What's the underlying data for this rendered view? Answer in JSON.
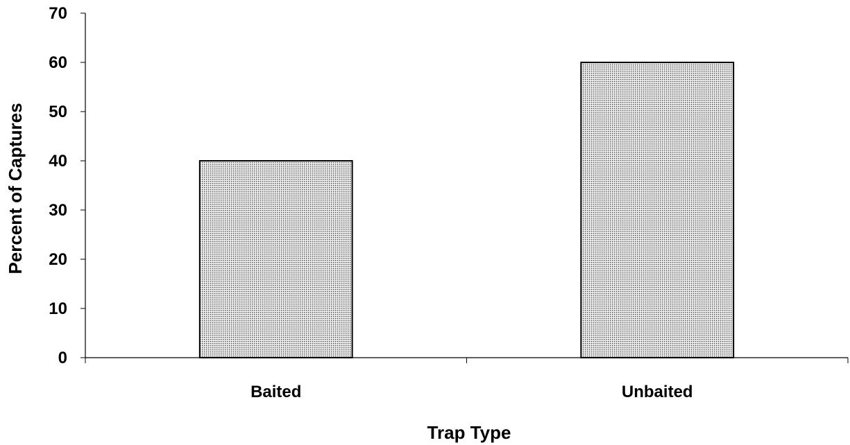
{
  "chart_data": {
    "type": "bar",
    "categories": [
      "Baited",
      "Unbaited"
    ],
    "values": [
      40,
      60
    ],
    "title": "",
    "xlabel": "Trap Type",
    "ylabel": "Percent of Captures",
    "ylim": [
      0,
      70
    ],
    "yticks": [
      0,
      10,
      20,
      30,
      40,
      50,
      60,
      70
    ],
    "ytick_labels": [
      "0",
      "10",
      "20",
      "30",
      "40",
      "50",
      "60",
      "70"
    ],
    "grid": false,
    "legend": "none",
    "bar_fill": "#d9d9d9",
    "bar_pattern": "dotted",
    "bar_edge_color": "#000000"
  }
}
